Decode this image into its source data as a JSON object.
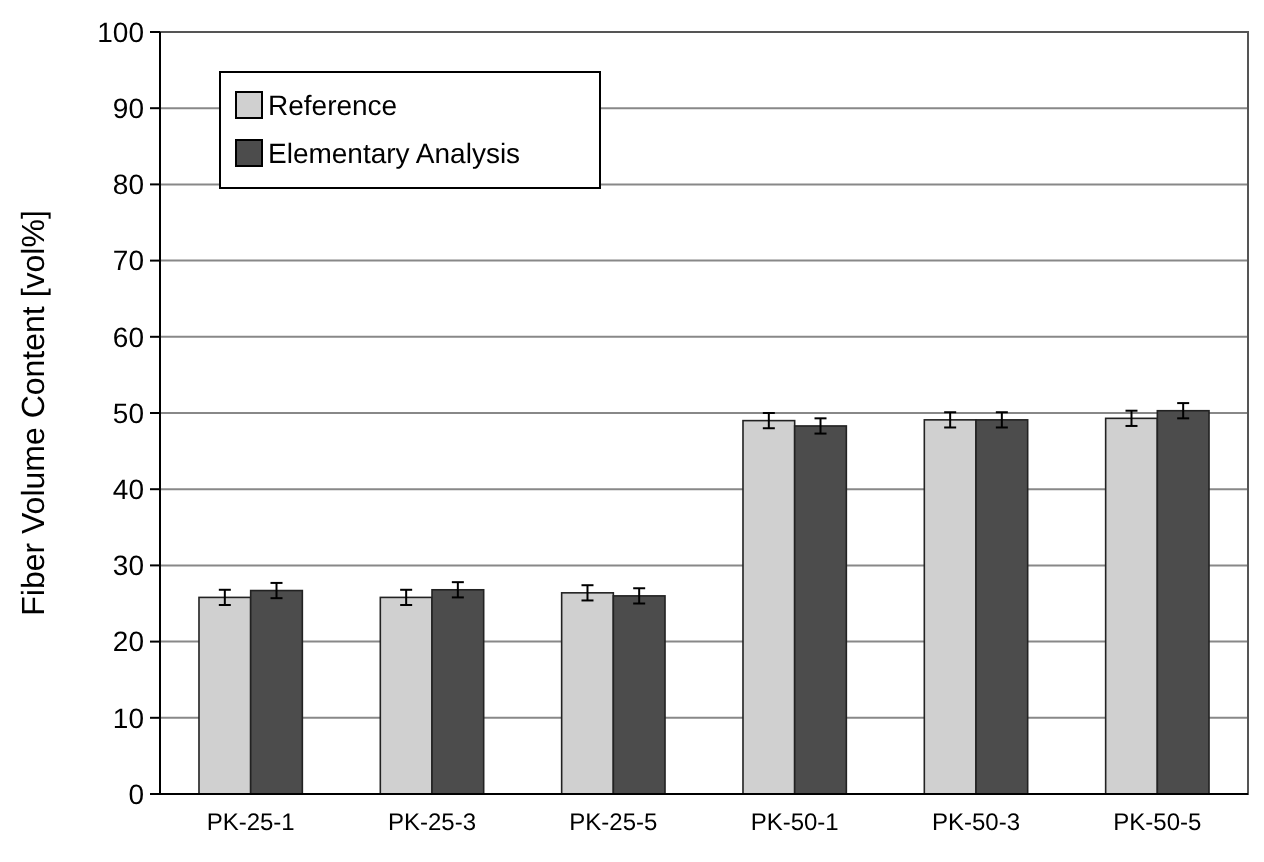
{
  "chart_data": {
    "type": "bar",
    "ylabel": "Fiber Volume Content  [vol%]",
    "categories": [
      "PK-25-1",
      "PK-25-3",
      "PK-25-5",
      "PK-50-1",
      "PK-50-3",
      "PK-50-5"
    ],
    "series": [
      {
        "name": "Reference",
        "color": "#d0d0d0",
        "values": [
          25.8,
          25.8,
          26.4,
          49.0,
          49.1,
          49.3
        ],
        "errors": [
          1,
          1,
          1,
          1,
          1,
          1
        ]
      },
      {
        "name": "Elementary Analysis",
        "color": "#4c4c4c",
        "values": [
          26.7,
          26.8,
          26.0,
          48.3,
          49.1,
          50.3
        ],
        "errors": [
          1,
          1,
          1,
          1,
          1,
          1
        ]
      }
    ],
    "ylim": [
      0,
      100
    ],
    "yticks": [
      0,
      10,
      20,
      30,
      40,
      50,
      60,
      70,
      80,
      90,
      100
    ],
    "grid": "y",
    "legend": "top left"
  }
}
